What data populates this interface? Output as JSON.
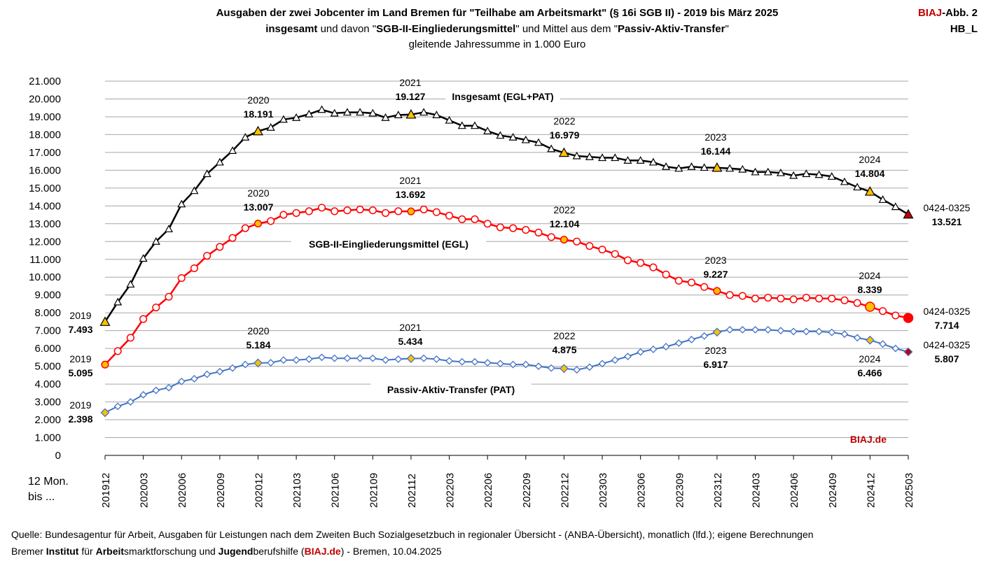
{
  "header": {
    "title_line1": "Ausgaben der zwei Jobcenter im Land Bremen für \"Teilhabe am Arbeitsmarkt\" (§ 16i SGB II) - 2019 bis März 2025",
    "title_line2_bold1": "insgesamt",
    "title_line2_text1": " und davon \"",
    "title_line2_bold2": "SGB-II-Eingliederungsmittel",
    "title_line2_text2": "\" und Mittel aus dem \"",
    "title_line2_bold3": "Passiv-Aktiv-Transfer",
    "title_line2_text3": "\"",
    "title_line3": "gleitende Jahressumme in 1.000 Euro",
    "badge_brand": "BIAJ",
    "badge_rest": "-Abb. 2",
    "badge_code": "HB_L"
  },
  "x_caption_line1": "12 Mon.",
  "x_caption_line2": "bis ...",
  "footer": {
    "line1": "Quelle: Bundesagentur für Arbeit, Ausgaben für Leistungen nach dem Zweiten Buch Sozialgesetzbuch in regionaler Übersicht - (ANBA-Übersicht), monatlich (lfd.); eigene Berechnungen",
    "line2_a": "Bremer ",
    "line2_b": "Institut",
    "line2_c": " für ",
    "line2_d": "Arbeit",
    "line2_e": "smarktforschung und ",
    "line2_f": "Jugend",
    "line2_g": "berufshilfe (",
    "line2_h": "BIAJ.de",
    "line2_i": ") - Bremen, 10.04.2025"
  },
  "colors": {
    "total": "#000000",
    "egl": "#ff0000",
    "pat": "#4472c4",
    "highlight": "#ffc000",
    "grid": "#a6a6a6",
    "brand": "#c00000"
  },
  "chart_data": {
    "type": "line",
    "title": "Ausgaben der zwei Jobcenter im Land Bremen für \"Teilhabe am Arbeitsmarkt\" (§ 16i SGB II) - 2019 bis März 2025",
    "ylim": [
      0,
      21000
    ],
    "yticks": [
      0,
      1000,
      2000,
      3000,
      4000,
      5000,
      6000,
      7000,
      8000,
      9000,
      10000,
      11000,
      12000,
      13000,
      14000,
      15000,
      16000,
      17000,
      18000,
      19000,
      20000,
      21000
    ],
    "ytick_labels": [
      "0",
      "1.000",
      "2.000",
      "3.000",
      "4.000",
      "5.000",
      "6.000",
      "7.000",
      "8.000",
      "9.000",
      "10.000",
      "11.000",
      "12.000",
      "13.000",
      "14.000",
      "15.000",
      "16.000",
      "17.000",
      "18.000",
      "19.000",
      "20.000",
      "21.000"
    ],
    "x_tick_labels": [
      "201912",
      "202003",
      "202006",
      "202009",
      "202012",
      "202103",
      "202106",
      "202109",
      "202112",
      "202203",
      "202206",
      "202209",
      "202212",
      "202303",
      "202306",
      "202309",
      "202312",
      "202403",
      "202406",
      "202409",
      "202412",
      "202503"
    ],
    "x_tick_every": 3,
    "grid": true,
    "watermark": "BIAJ.de",
    "series": [
      {
        "name": "Insgesamt (EGL+PAT)",
        "values": [
          7493,
          8600,
          9600,
          11050,
          12000,
          12700,
          14100,
          14850,
          15800,
          16450,
          17100,
          17850,
          18191,
          18400,
          18850,
          18950,
          19150,
          19400,
          19200,
          19250,
          19250,
          19200,
          18950,
          19100,
          19127,
          19250,
          19100,
          18800,
          18500,
          18500,
          18200,
          17950,
          17850,
          17700,
          17550,
          17200,
          16979,
          16800,
          16750,
          16700,
          16700,
          16550,
          16550,
          16450,
          16200,
          16100,
          16200,
          16150,
          16144,
          16100,
          16050,
          15900,
          15900,
          15850,
          15700,
          15800,
          15750,
          15650,
          15350,
          15050,
          14804,
          14350,
          13950,
          13521
        ]
      },
      {
        "name": "SGB-II-Eingliederungsmittel (EGL)",
        "values": [
          5095,
          5850,
          6600,
          7650,
          8300,
          8900,
          9950,
          10500,
          11200,
          11700,
          12200,
          12750,
          13007,
          13150,
          13500,
          13600,
          13700,
          13900,
          13700,
          13750,
          13800,
          13750,
          13600,
          13700,
          13692,
          13800,
          13650,
          13450,
          13250,
          13250,
          13000,
          12800,
          12750,
          12650,
          12500,
          12250,
          12104,
          12000,
          11750,
          11550,
          11300,
          10950,
          10800,
          10550,
          10150,
          9800,
          9700,
          9450,
          9227,
          9000,
          8950,
          8800,
          8850,
          8800,
          8750,
          8850,
          8800,
          8800,
          8700,
          8550,
          8339,
          8100,
          7850,
          7714
        ]
      },
      {
        "name": "Passiv-Aktiv-Transfer (PAT)",
        "values": [
          2398,
          2750,
          3000,
          3400,
          3650,
          3800,
          4150,
          4300,
          4550,
          4700,
          4900,
          5100,
          5184,
          5200,
          5350,
          5350,
          5400,
          5500,
          5450,
          5450,
          5450,
          5450,
          5350,
          5400,
          5434,
          5450,
          5400,
          5300,
          5250,
          5250,
          5200,
          5150,
          5100,
          5100,
          5000,
          4900,
          4875,
          4800,
          4950,
          5150,
          5350,
          5550,
          5800,
          5950,
          6100,
          6300,
          6500,
          6700,
          6917,
          7050,
          7050,
          7050,
          7050,
          7000,
          6950,
          6950,
          6950,
          6900,
          6800,
          6600,
          6466,
          6250,
          6000,
          5807
        ]
      }
    ],
    "highlight_indices": [
      0,
      12,
      24,
      36,
      48,
      60,
      63
    ],
    "annotations": [
      {
        "series": 0,
        "year": "2019",
        "value": "7.493"
      },
      {
        "series": 0,
        "year": "2020",
        "value": "18.191"
      },
      {
        "series": 0,
        "year": "2021",
        "value": "19.127"
      },
      {
        "series": 0,
        "year": "2022",
        "value": "16.979"
      },
      {
        "series": 0,
        "year": "2023",
        "value": "16.144"
      },
      {
        "series": 0,
        "year": "2024",
        "value": "14.804"
      },
      {
        "series": 0,
        "year": "0424-0325",
        "value": "13.521"
      },
      {
        "series": 1,
        "year": "2019",
        "value": "5.095"
      },
      {
        "series": 1,
        "year": "2020",
        "value": "13.007"
      },
      {
        "series": 1,
        "year": "2021",
        "value": "13.692"
      },
      {
        "series": 1,
        "year": "2022",
        "value": "12.104"
      },
      {
        "series": 1,
        "year": "2023",
        "value": "9.227"
      },
      {
        "series": 1,
        "year": "2024",
        "value": "8.339"
      },
      {
        "series": 1,
        "year": "0424-0325",
        "value": "7.714"
      },
      {
        "series": 2,
        "year": "2019",
        "value": "2.398"
      },
      {
        "series": 2,
        "year": "2020",
        "value": "5.184"
      },
      {
        "series": 2,
        "year": "2021",
        "value": "5.434"
      },
      {
        "series": 2,
        "year": "2022",
        "value": "4.875"
      },
      {
        "series": 2,
        "year": "2023",
        "value": "6.917"
      },
      {
        "series": 2,
        "year": "2024",
        "value": "6.466"
      },
      {
        "series": 2,
        "year": "0424-0325",
        "value": "5.807"
      }
    ]
  }
}
